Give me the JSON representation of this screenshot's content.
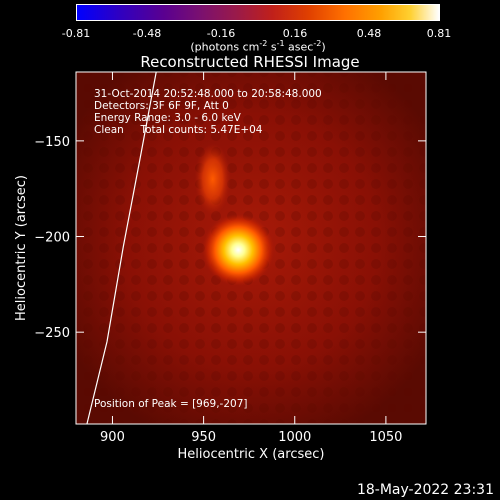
{
  "colorbar": {
    "ticks": [
      "-0.81",
      "-0.48",
      "-0.16",
      "0.16",
      "0.48",
      "0.81"
    ],
    "unit_prefix": "(photons cm",
    "unit_exp1": "-2",
    "unit_mid1": " s",
    "unit_exp2": "-1",
    "unit_mid2": " asec",
    "unit_exp3": "-2",
    "unit_suffix": ")"
  },
  "info": {
    "line1": "31-Oct-2014 20:52:48.000 to 20:58:48.000",
    "line2": "Detectors: 3F 6F 9F, Att 0",
    "line3": "Energy Range: 3.0 - 6.0 keV",
    "line4": "Clean     Total counts: 5.47E+04",
    "peak": "Position of Peak = [969,-207]"
  },
  "timestamp": "18-May-2022 23:31",
  "chart_data": {
    "type": "heatmap",
    "title": "Reconstructed RHESSI Image",
    "xlabel": "Heliocentric X (arcsec)",
    "ylabel": "Heliocentric Y (arcsec)",
    "xlim": [
      880,
      1072
    ],
    "ylim": [
      -298,
      -114
    ],
    "xticks": [
      900,
      950,
      1000,
      1050
    ],
    "yticks": [
      -150,
      -200,
      -250
    ],
    "colorscale": {
      "min": -0.81,
      "max": 0.81
    },
    "peak": {
      "x": 969,
      "y": -207
    },
    "sources": [
      {
        "x": 969,
        "y": -207,
        "intensity": 0.81
      },
      {
        "x": 955,
        "y": -170,
        "intensity": 0.45
      }
    ],
    "limb_curve": [
      [
        924,
        -114
      ],
      [
        915,
        -160
      ],
      [
        906,
        -205
      ],
      [
        897,
        -255
      ],
      [
        886,
        -298
      ]
    ]
  }
}
